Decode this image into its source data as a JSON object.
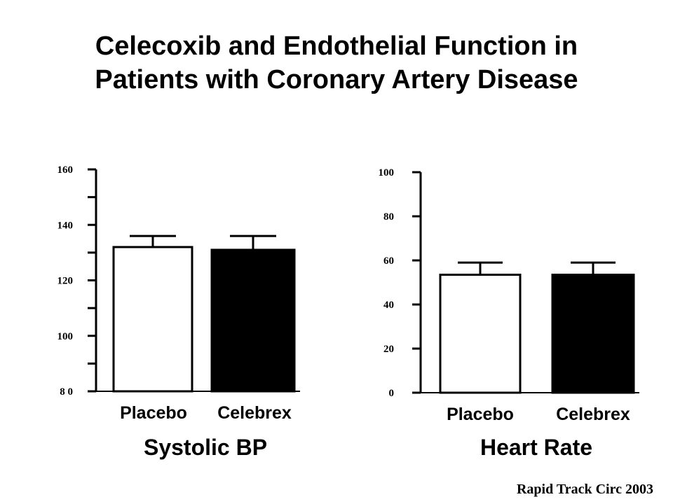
{
  "page": {
    "title_line1": "Celecoxib and Endothelial Function in",
    "title_line2": "Patients with Coronary Artery Disease",
    "source": "Rapid Track Circ 2003"
  },
  "chart_data": [
    {
      "type": "bar",
      "title": "Systolic BP",
      "categories": [
        "Placebo",
        "Celebrex"
      ],
      "values": [
        132,
        131
      ],
      "error_upper": [
        136,
        136
      ],
      "bar_colors": [
        "#ffffff",
        "#000000"
      ],
      "ylim": [
        80,
        160
      ],
      "yticks": [
        80,
        100,
        120,
        140,
        160
      ],
      "ytick_labels": [
        "8 0",
        "100",
        "120",
        "140",
        "160"
      ],
      "minor_ticks": [
        90,
        110,
        130,
        150
      ],
      "xlabel": "",
      "ylabel": ""
    },
    {
      "type": "bar",
      "title": "Heart Rate",
      "categories": [
        "Placebo",
        "Celebrex"
      ],
      "values": [
        53.5,
        53.5
      ],
      "error_upper": [
        59,
        59
      ],
      "bar_colors": [
        "#ffffff",
        "#000000"
      ],
      "ylim": [
        0,
        100
      ],
      "yticks": [
        0,
        20,
        40,
        60,
        80,
        100
      ],
      "ytick_labels": [
        "0",
        "20",
        "40",
        "60",
        "80",
        "100"
      ],
      "minor_ticks": [],
      "xlabel": "",
      "ylabel": ""
    }
  ]
}
